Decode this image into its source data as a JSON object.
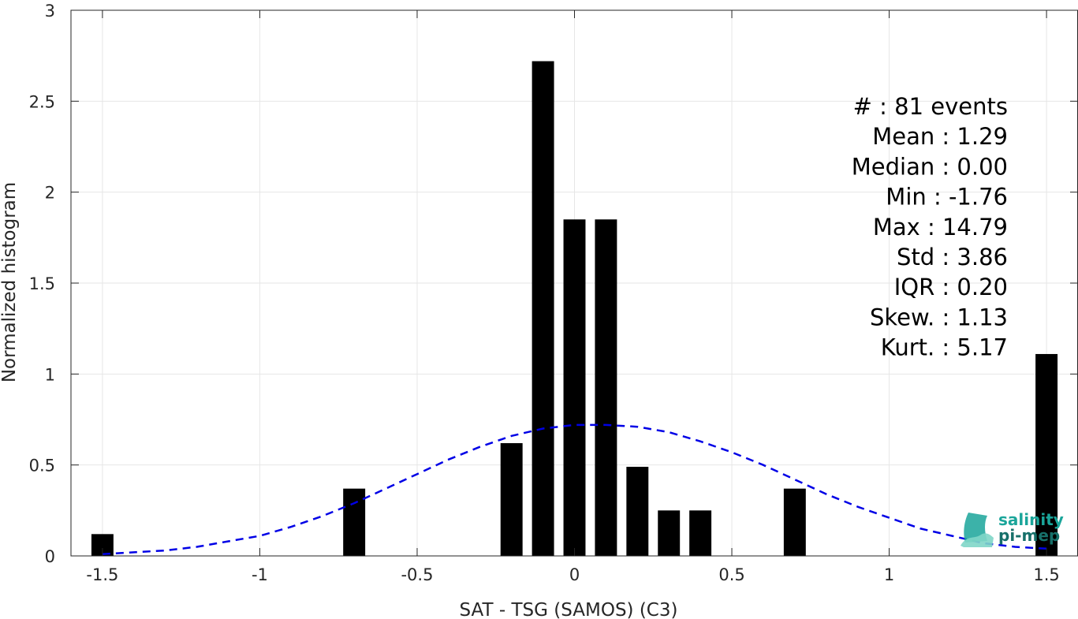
{
  "chart_data": {
    "type": "bar",
    "xlabel": "SAT - TSG (SAMOS) (C3)",
    "ylabel": "Normalized histogram",
    "xlim": [
      -1.6,
      1.6
    ],
    "ylim": [
      0,
      3
    ],
    "x_ticks": [
      -1.5,
      -1,
      -0.5,
      0,
      0.5,
      1,
      1.5
    ],
    "x_tick_labels": [
      "-1.5",
      "-1",
      "-0.5",
      "0",
      "0.5",
      "1",
      "1.5"
    ],
    "y_ticks": [
      0,
      0.5,
      1,
      1.5,
      2,
      2.5,
      3
    ],
    "y_tick_labels": [
      "0",
      "0.5",
      "1",
      "1.5",
      "2",
      "2.5",
      "3"
    ],
    "grid": true,
    "bar_width": 0.07,
    "bars": [
      {
        "x": -1.5,
        "value": 0.12
      },
      {
        "x": -0.7,
        "value": 0.37
      },
      {
        "x": -0.2,
        "value": 0.62
      },
      {
        "x": -0.1,
        "value": 2.72
      },
      {
        "x": 0.0,
        "value": 1.85
      },
      {
        "x": 0.1,
        "value": 1.85
      },
      {
        "x": 0.2,
        "value": 0.49
      },
      {
        "x": 0.3,
        "value": 0.25
      },
      {
        "x": 0.4,
        "value": 0.25
      },
      {
        "x": 0.7,
        "value": 0.37
      },
      {
        "x": 1.5,
        "value": 1.11
      }
    ],
    "bar_color": "#000000",
    "fit_curve": {
      "style": "dashed",
      "color": "#0000e6",
      "x": [
        -1.5,
        -1.4,
        -1.3,
        -1.2,
        -1.1,
        -1.0,
        -0.9,
        -0.8,
        -0.7,
        -0.6,
        -0.5,
        -0.4,
        -0.3,
        -0.2,
        -0.1,
        0.0,
        0.1,
        0.2,
        0.3,
        0.4,
        0.5,
        0.6,
        0.7,
        0.8,
        0.9,
        1.0,
        1.1,
        1.2,
        1.3,
        1.4,
        1.5
      ],
      "y": [
        0.01,
        0.02,
        0.03,
        0.05,
        0.08,
        0.11,
        0.16,
        0.22,
        0.29,
        0.37,
        0.45,
        0.53,
        0.6,
        0.66,
        0.7,
        0.72,
        0.72,
        0.71,
        0.68,
        0.63,
        0.57,
        0.5,
        0.42,
        0.34,
        0.27,
        0.21,
        0.15,
        0.11,
        0.07,
        0.05,
        0.04
      ]
    },
    "stats": [
      {
        "label": "#  : 81 events"
      },
      {
        "label": "Mean : 1.29"
      },
      {
        "label": "Median : 0.00"
      },
      {
        "label": "Min : -1.76"
      },
      {
        "label": "Max : 14.79"
      },
      {
        "label": "Std : 3.86"
      },
      {
        "label": "IQR : 0.20"
      },
      {
        "label": "Skew. : 1.13"
      },
      {
        "label": "Kurt. : 5.17"
      }
    ],
    "logo": {
      "line1": "salinity",
      "line2": "pi-mep",
      "color1": "#1aa59a",
      "color2": "#17706a"
    }
  }
}
